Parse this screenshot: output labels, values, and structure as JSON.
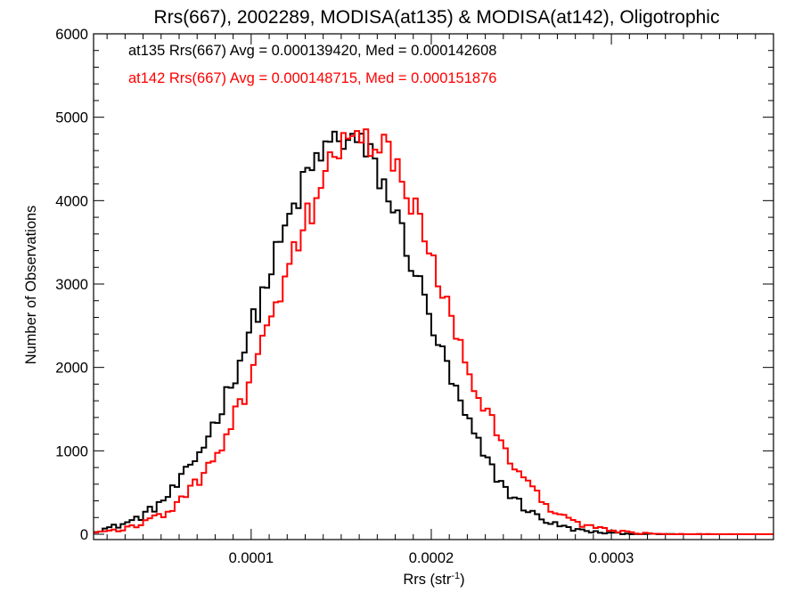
{
  "chart_data": {
    "type": "histogram-step",
    "title": "Rrs(667), 2002289, MODISA(at135) & MODISA(at142), Oligotrophic",
    "xlabel_main": "Rrs (str",
    "xlabel_sup": "-1",
    "xlabel_end": ")",
    "ylabel": "Number of Observations",
    "xlim": [
      1.25e-05,
      0.00039
    ],
    "ylim": [
      0,
      6000
    ],
    "x_ticks": [
      0.0001,
      0.0002,
      0.0003
    ],
    "x_tick_labels": [
      "0.0001",
      "0.0002",
      "0.0003"
    ],
    "y_ticks": [
      0,
      1000,
      2000,
      3000,
      4000,
      5000,
      6000
    ],
    "y_tick_labels": [
      "0",
      "1000",
      "2000",
      "3000",
      "4000",
      "5000",
      "6000"
    ],
    "grid": false,
    "annotations": [
      {
        "text": "at135 Rrs(667) Avg = 0.000139420, Med = 0.000142608",
        "color": "#000000"
      },
      {
        "text": "at142 Rrs(667) Avg = 0.000148715, Med = 0.000151876",
        "color": "#ff0000"
      }
    ],
    "bin_width": 2.5e-06,
    "series": [
      {
        "name": "at135",
        "color": "#000000",
        "model": {
          "peak_x": 0.000152,
          "peak_y": 4750,
          "sigma_left": 4.55e-05,
          "sigma_right": 4.3e-05,
          "noise": 220
        }
      },
      {
        "name": "at142",
        "color": "#ff0000",
        "model": {
          "peak_x": 0.000162,
          "peak_y": 4750,
          "sigma_left": 4.55e-05,
          "sigma_right": 4.5e-05,
          "noise": 220
        }
      }
    ]
  }
}
